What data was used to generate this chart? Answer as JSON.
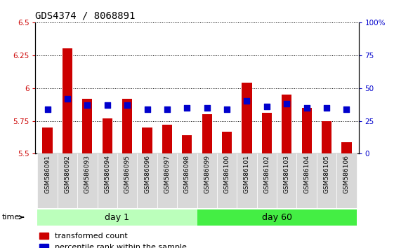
{
  "title": "GDS4374 / 8068891",
  "samples": [
    "GSM586091",
    "GSM586092",
    "GSM586093",
    "GSM586094",
    "GSM586095",
    "GSM586096",
    "GSM586097",
    "GSM586098",
    "GSM586099",
    "GSM586100",
    "GSM586101",
    "GSM586102",
    "GSM586103",
    "GSM586104",
    "GSM586105",
    "GSM586106"
  ],
  "bar_values": [
    5.7,
    6.3,
    5.92,
    5.77,
    5.92,
    5.7,
    5.72,
    5.64,
    5.8,
    5.67,
    6.04,
    5.81,
    5.95,
    5.85,
    5.75,
    5.59
  ],
  "dot_values": [
    5.84,
    5.92,
    5.87,
    5.87,
    5.87,
    5.84,
    5.84,
    5.85,
    5.85,
    5.84,
    5.9,
    5.86,
    5.88,
    5.85,
    5.85,
    5.84
  ],
  "bar_bottom": 5.5,
  "ylim_left": [
    5.5,
    6.5
  ],
  "ylim_right": [
    0,
    100
  ],
  "yticks_left": [
    5.5,
    5.75,
    6.0,
    6.25,
    6.5
  ],
  "yticks_right": [
    0,
    25,
    50,
    75,
    100
  ],
  "ytick_labels_left": [
    "5.5",
    "5.75",
    "6",
    "6.25",
    "6.5"
  ],
  "ytick_labels_right": [
    "0",
    "25",
    "50",
    "75",
    "100%"
  ],
  "bar_color": "#cc0000",
  "dot_color": "#0000cc",
  "grid_color": "#000000",
  "bg_color": "#ffffff",
  "plot_bg": "#ffffff",
  "day1_samples": 8,
  "day60_samples": 8,
  "day1_label": "day 1",
  "day60_label": "day 60",
  "day1_color": "#bbffbb",
  "day60_color": "#44ee44",
  "time_label": "time",
  "legend_bar_label": "transformed count",
  "legend_dot_label": "percentile rank within the sample",
  "xlabel_color": "#cc0000",
  "ylabel_right_color": "#0000cc",
  "title_fontsize": 10,
  "tick_fontsize": 7.5,
  "legend_fontsize": 8,
  "bar_width": 0.5,
  "dot_size": 30
}
